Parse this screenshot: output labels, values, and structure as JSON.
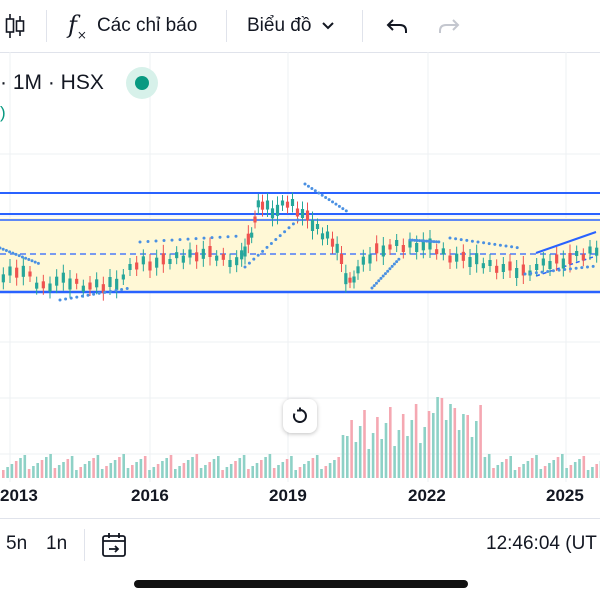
{
  "toolbar": {
    "indicators_label": "Các chỉ báo",
    "chart_type_label": "Biểu đồ",
    "icons": [
      "candles-icon",
      "fx-icon",
      "chevron-down-icon",
      "undo-icon",
      "redo-icon"
    ]
  },
  "symbol": {
    "interval_exchange": "· 1M · HSX",
    "paren": ")"
  },
  "colors": {
    "up": "#26a69a",
    "down": "#ef5350",
    "volume_up": "#8ed1c6",
    "volume_down": "#f5a8b2",
    "trendline": "#2962ff",
    "channel_fill": "#fff8d6",
    "psar": "#4a90e2",
    "live": "#089981"
  },
  "axis": {
    "years": [
      "2013",
      "2016",
      "2019",
      "2022",
      "2025"
    ]
  },
  "bottom_bar": {
    "range_5y": "5n",
    "range_1y": "1n",
    "clock": "12:46:04 (UT"
  }
}
